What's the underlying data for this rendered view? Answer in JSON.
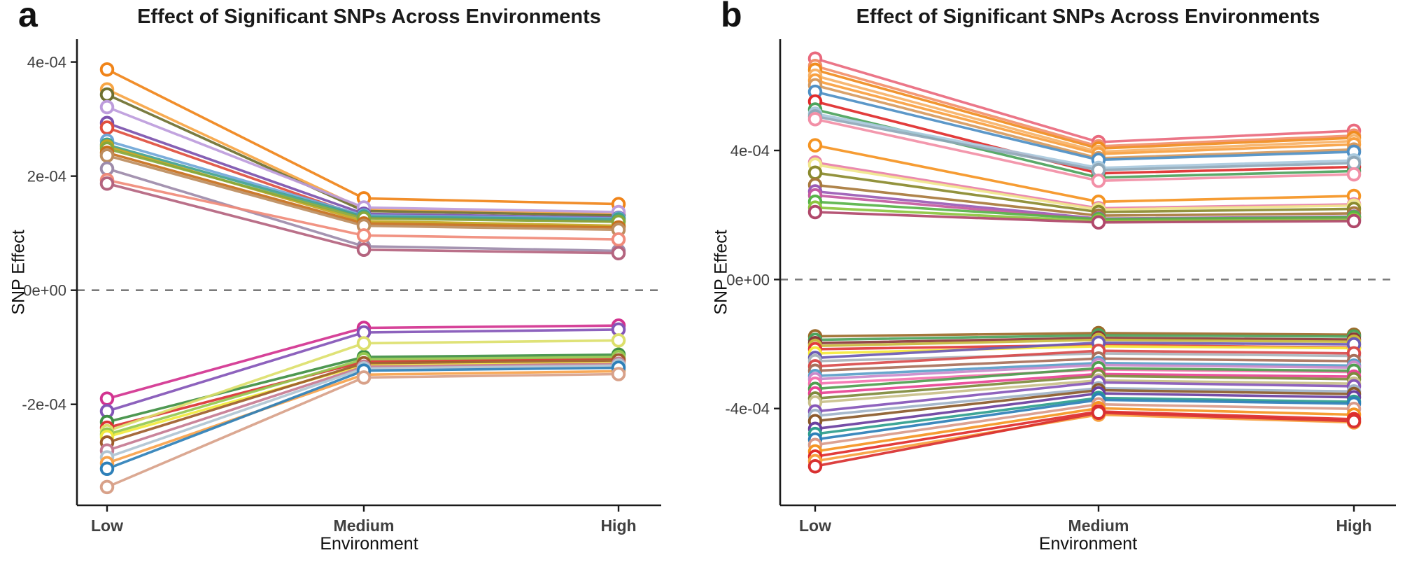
{
  "figure": {
    "background": "#ffffff",
    "axis_color": "#1a1a1a",
    "tick_label_color": "#404040",
    "zero_line_color": "#7a7a7a"
  },
  "chart_data": [
    {
      "type": "line",
      "panel_label": "a",
      "title": "Effect of Significant SNPs Across Environments",
      "xlabel": "Environment",
      "ylabel": "SNP Effect",
      "categories": [
        "Low",
        "Medium",
        "High"
      ],
      "ylim": [
        -0.000377,
        0.00044
      ],
      "grid": false,
      "legend": "none",
      "zero_line": true,
      "y_ticks": [
        {
          "value": 0.0004,
          "label": "4e-04"
        },
        {
          "value": 0.0002,
          "label": "2e-04"
        },
        {
          "value": 0,
          "label": "0e+00"
        },
        {
          "value": -0.0002,
          "label": "-2e-04"
        }
      ],
      "series": [
        {
          "color": "#F08419",
          "values": [
            0.000387,
            0.000161,
            0.000151
          ]
        },
        {
          "color": "#F7A544",
          "values": [
            0.000352,
            0.000142,
            0.000134
          ]
        },
        {
          "color": "#6E7030",
          "values": [
            0.000343,
            0.000139,
            0.000131
          ]
        },
        {
          "color": "#BD9CDC",
          "values": [
            0.000321,
            0.000145,
            0.000137
          ]
        },
        {
          "color": "#7C52AE",
          "values": [
            0.000293,
            0.000134,
            0.000127
          ]
        },
        {
          "color": "#E04F3E",
          "values": [
            0.000285,
            0.000128,
            0.000121
          ]
        },
        {
          "color": "#6FA6D8",
          "values": [
            0.000262,
            0.000131,
            0.000126
          ]
        },
        {
          "color": "#41A28E",
          "values": [
            0.000255,
            0.000129,
            0.000124
          ]
        },
        {
          "color": "#C2A51F",
          "values": [
            0.000252,
            0.000121,
            0.000113
          ]
        },
        {
          "color": "#85A83B",
          "values": [
            0.000248,
            0.000126,
            0.00012
          ]
        },
        {
          "color": "#C76F1C",
          "values": [
            0.000241,
            0.000117,
            0.00011
          ]
        },
        {
          "color": "#BD8D5E",
          "values": [
            0.000236,
            0.000113,
            0.000106
          ]
        },
        {
          "color": "#9D8BAA",
          "values": [
            0.000213,
            7.7e-05,
            6.9e-05
          ]
        },
        {
          "color": "#F08B7A",
          "values": [
            0.000193,
            9.6e-05,
            8.9e-05
          ]
        },
        {
          "color": "#B4647F",
          "values": [
            0.000187,
            7.1e-05,
            6.5e-05
          ]
        },
        {
          "color": "#D23390",
          "values": [
            -0.00019,
            -6.6e-05,
            -6.2e-05
          ]
        },
        {
          "color": "#8355B7",
          "values": [
            -0.000212,
            -7.4e-05,
            -6.9e-05
          ]
        },
        {
          "color": "#3F8F43",
          "values": [
            -0.000231,
            -0.000117,
            -0.000113
          ]
        },
        {
          "color": "#DA3333",
          "values": [
            -0.000241,
            -0.000125,
            -0.00012
          ]
        },
        {
          "color": "#DCDF6B",
          "values": [
            -0.000247,
            -9.3e-05,
            -8.8e-05
          ]
        },
        {
          "color": "#95C850",
          "values": [
            -0.000253,
            -0.000121,
            -0.000117
          ]
        },
        {
          "color": "#F1EA3E",
          "values": [
            -0.000257,
            -0.000131,
            -0.000126
          ]
        },
        {
          "color": "#9E5D2B",
          "values": [
            -0.000267,
            -0.000128,
            -0.000123
          ]
        },
        {
          "color": "#C57A91",
          "values": [
            -0.000281,
            -0.000134,
            -0.000129
          ]
        },
        {
          "color": "#B0C4D2",
          "values": [
            -0.000293,
            -0.000137,
            -0.000132
          ]
        },
        {
          "color": "#F7A24B",
          "values": [
            -0.000303,
            -0.000148,
            -0.000142
          ]
        },
        {
          "color": "#2E80B9",
          "values": [
            -0.000313,
            -0.000141,
            -0.000136
          ]
        },
        {
          "color": "#D8A189",
          "values": [
            -0.000345,
            -0.000153,
            -0.000147
          ]
        }
      ]
    },
    {
      "type": "line",
      "panel_label": "b",
      "title": "Effect of Significant SNPs Across Environments",
      "xlabel": "Environment",
      "ylabel": "SNP Effect",
      "categories": [
        "Low",
        "Medium",
        "High"
      ],
      "ylim": [
        -0.0007,
        0.000745
      ],
      "grid": false,
      "legend": "none",
      "zero_line": true,
      "y_ticks": [
        {
          "value": 0.0004,
          "label": "4e-04"
        },
        {
          "value": 0,
          "label": "0e+00"
        },
        {
          "value": -0.0004,
          "label": "-4e-04"
        }
      ],
      "series": [
        {
          "color": "#E96A7E",
          "values": [
            0.000685,
            0.000426,
            0.000461
          ]
        },
        {
          "color": "#F2906B",
          "values": [
            0.000662,
            0.000413,
            0.000446
          ]
        },
        {
          "color": "#F08C1E",
          "values": [
            0.00065,
            0.000406,
            0.000439
          ]
        },
        {
          "color": "#F7B267",
          "values": [
            0.000632,
            0.000396,
            0.000429
          ]
        },
        {
          "color": "#F9A03F",
          "values": [
            0.000617,
            0.000389,
            0.000419
          ]
        },
        {
          "color": "#D69A5E",
          "values": [
            0.000602,
            0.000376,
            0.000403
          ]
        },
        {
          "color": "#4E8FC4",
          "values": [
            0.000582,
            0.000371,
            0.000396
          ]
        },
        {
          "color": "#E02B2B",
          "values": [
            0.000552,
            0.000329,
            0.000349
          ]
        },
        {
          "color": "#4CA35C",
          "values": [
            0.000527,
            0.000316,
            0.000336
          ]
        },
        {
          "color": "#A9C9DD",
          "values": [
            0.000514,
            0.000346,
            0.000369
          ]
        },
        {
          "color": "#8FA8B8",
          "values": [
            0.000506,
            0.000339,
            0.000361
          ]
        },
        {
          "color": "#F28FA6",
          "values": [
            0.000497,
            0.000306,
            0.000326
          ]
        },
        {
          "color": "#F59422",
          "values": [
            0.000416,
            0.000241,
            0.000259
          ]
        },
        {
          "color": "#E87FA8",
          "values": [
            0.000363,
            0.000221,
            0.000233
          ]
        },
        {
          "color": "#F0E68C",
          "values": [
            0.000356,
            0.000217,
            0.000229
          ]
        },
        {
          "color": "#8A8A2E",
          "values": [
            0.000331,
            0.000209,
            0.000219
          ]
        },
        {
          "color": "#A8793C",
          "values": [
            0.000293,
            0.000198,
            0.000205
          ]
        },
        {
          "color": "#9A5BB5",
          "values": [
            0.000273,
            0.000189,
            0.000195
          ]
        },
        {
          "color": "#C45AA0",
          "values": [
            0.000261,
            0.000185,
            0.000191
          ]
        },
        {
          "color": "#58B348",
          "values": [
            0.000241,
            0.000187,
            0.000193
          ]
        },
        {
          "color": "#8CC63F",
          "values": [
            0.000223,
            0.000181,
            0.000185
          ]
        },
        {
          "color": "#B0486A",
          "values": [
            0.000209,
            0.000177,
            0.000181
          ]
        },
        {
          "color": "#9C6B2A",
          "values": [
            -0.000176,
            -0.000166,
            -0.000171
          ]
        },
        {
          "color": "#4CA35C",
          "values": [
            -0.000187,
            -0.000173,
            -0.000177
          ]
        },
        {
          "color": "#8B3A3A",
          "values": [
            -0.000197,
            -0.000181,
            -0.000186
          ]
        },
        {
          "color": "#C9B83C",
          "values": [
            -0.000206,
            -0.000187,
            -0.000193
          ]
        },
        {
          "color": "#E23B3B",
          "values": [
            -0.000216,
            -0.000203,
            -0.000211
          ]
        },
        {
          "color": "#F5E93C",
          "values": [
            -0.000229,
            -0.000207,
            -0.000213
          ]
        },
        {
          "color": "#6B5BB5",
          "values": [
            -0.000243,
            -0.000196,
            -0.000201
          ]
        },
        {
          "color": "#AAB4BC",
          "values": [
            -0.000253,
            -0.000229,
            -0.000237
          ]
        },
        {
          "color": "#D94C4C",
          "values": [
            -0.000269,
            -0.000221,
            -0.000229
          ]
        },
        {
          "color": "#A8705A",
          "values": [
            -0.000283,
            -0.000245,
            -0.000253
          ]
        },
        {
          "color": "#5B9EC9",
          "values": [
            -0.000299,
            -0.000259,
            -0.000267
          ]
        },
        {
          "color": "#C98ACB",
          "values": [
            -0.000309,
            -0.000265,
            -0.000273
          ]
        },
        {
          "color": "#F573B0",
          "values": [
            -0.000323,
            -0.000279,
            -0.000287
          ]
        },
        {
          "color": "#4F9E4F",
          "values": [
            -0.000339,
            -0.000275,
            -0.000283
          ]
        },
        {
          "color": "#E84393",
          "values": [
            -0.000353,
            -0.000293,
            -0.000301
          ]
        },
        {
          "color": "#7E8A3C",
          "values": [
            -0.000369,
            -0.000299,
            -0.000309
          ]
        },
        {
          "color": "#C9C08A",
          "values": [
            -0.000381,
            -0.000313,
            -0.000323
          ]
        },
        {
          "color": "#8656B8",
          "values": [
            -0.000409,
            -0.000319,
            -0.000331
          ]
        },
        {
          "color": "#9FB3C8",
          "values": [
            -0.000423,
            -0.000337,
            -0.000347
          ]
        },
        {
          "color": "#8B5A2A",
          "values": [
            -0.000439,
            -0.000343,
            -0.000355
          ]
        },
        {
          "color": "#6A3FA0",
          "values": [
            -0.000463,
            -0.000353,
            -0.000365
          ]
        },
        {
          "color": "#2E9E8E",
          "values": [
            -0.000479,
            -0.000367,
            -0.000379
          ]
        },
        {
          "color": "#2C7FB8",
          "values": [
            -0.000496,
            -0.000373,
            -0.000385
          ]
        },
        {
          "color": "#D99A8A",
          "values": [
            -0.000513,
            -0.000387,
            -0.000401
          ]
        },
        {
          "color": "#F59422",
          "values": [
            -0.000533,
            -0.000399,
            -0.000419
          ]
        },
        {
          "color": "#E02B2B",
          "values": [
            -0.000549,
            -0.000409,
            -0.000433
          ]
        },
        {
          "color": "#F7A03F",
          "values": [
            -0.000563,
            -0.000419,
            -0.000443
          ]
        },
        {
          "color": "#D93030",
          "values": [
            -0.000579,
            -0.000413,
            -0.000439
          ]
        }
      ]
    }
  ]
}
